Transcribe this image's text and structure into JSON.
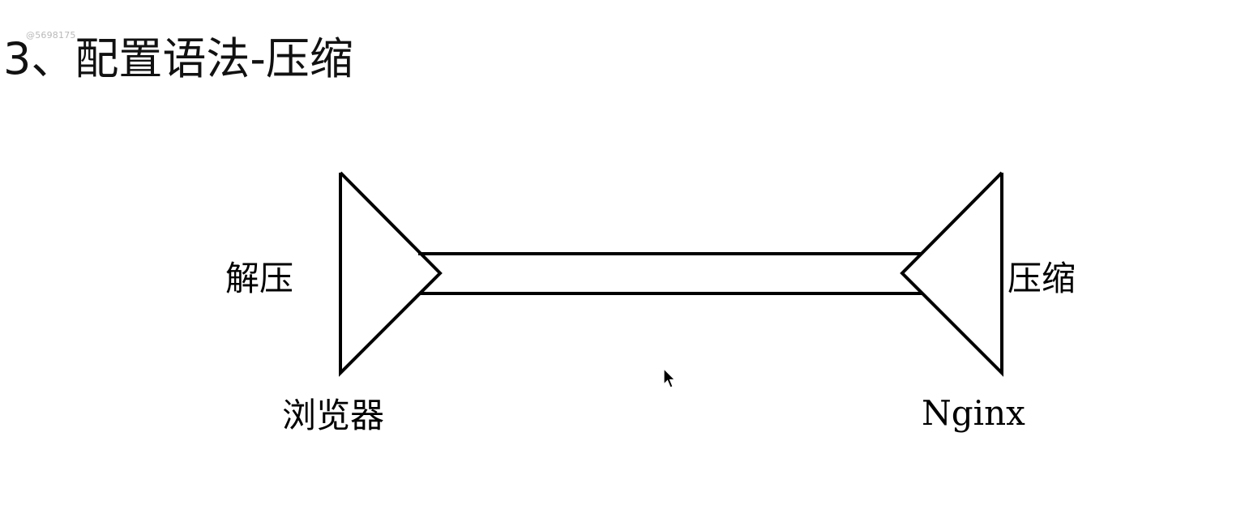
{
  "watermark": "@5698175",
  "title": "3、配置语法-压缩",
  "diagram": {
    "left": {
      "side_label": "解压",
      "bottom_label": "浏览器"
    },
    "right": {
      "side_label": "压缩",
      "bottom_label": "Nginx"
    }
  },
  "colors": {
    "stroke": "#000000",
    "text": "#111111",
    "watermark": "#b9b9b9"
  }
}
